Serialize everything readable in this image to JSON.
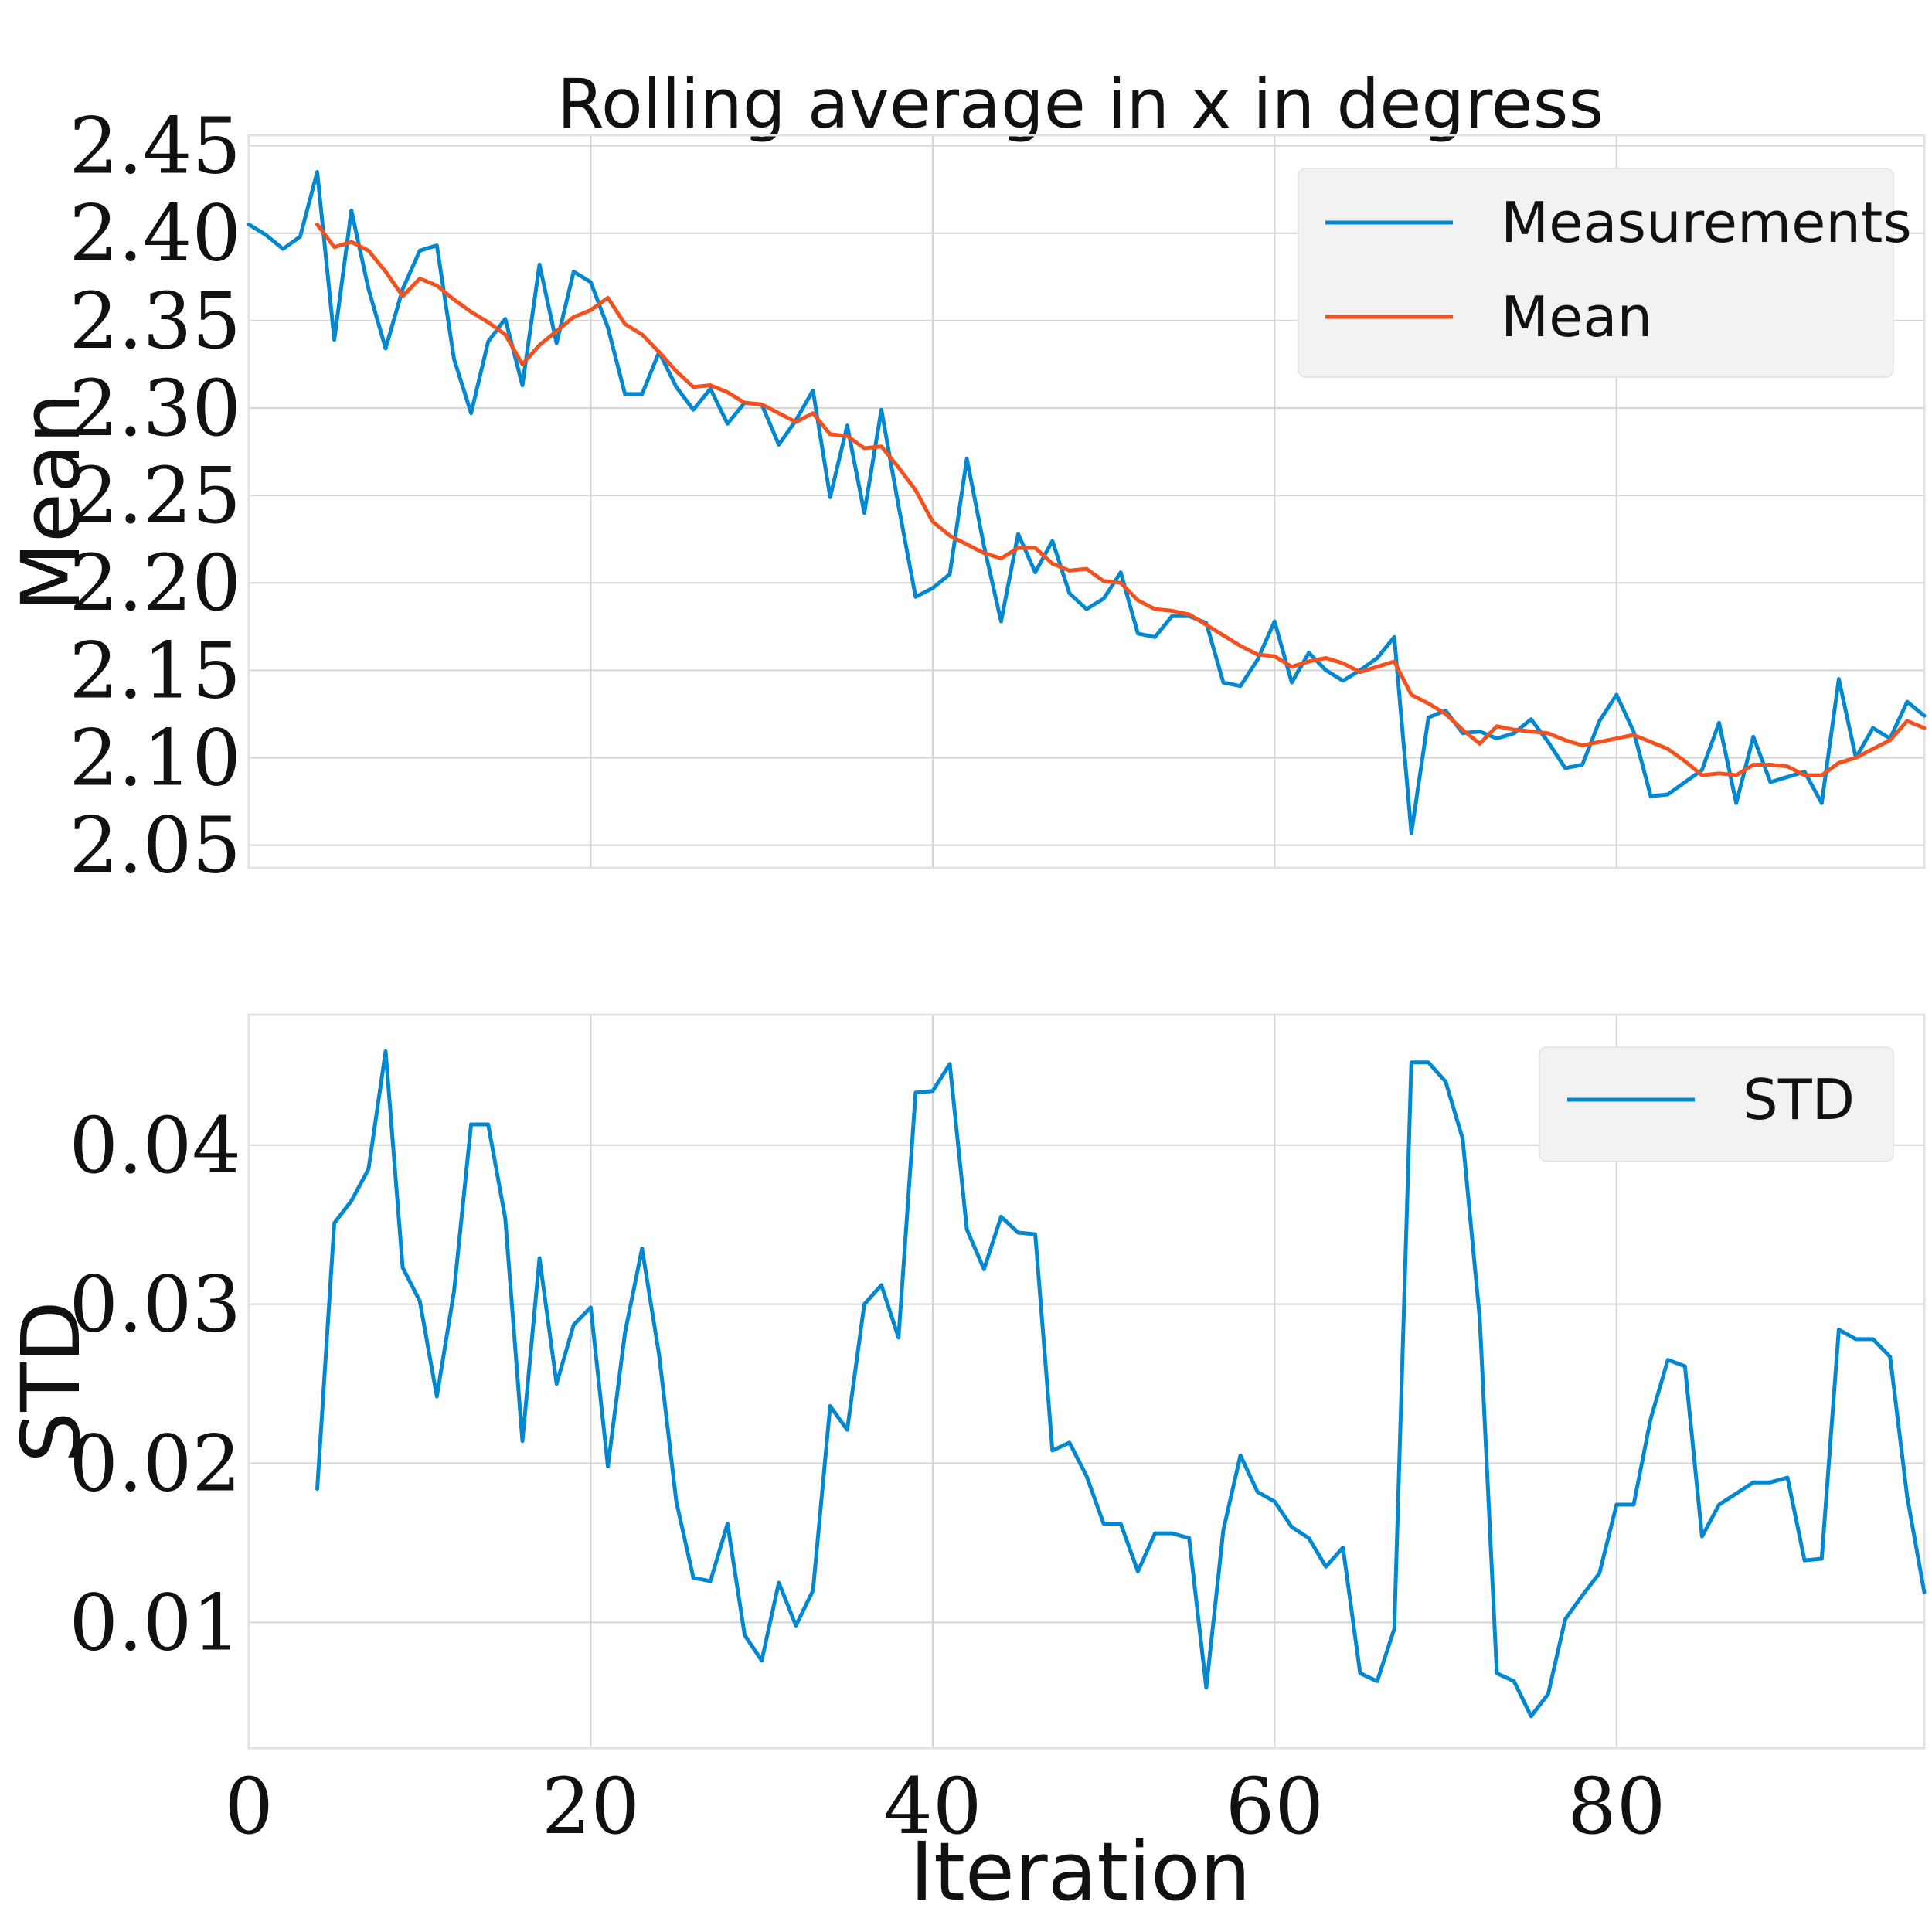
{
  "chart_data": [
    {
      "type": "line",
      "title": "Rolling average in x in degress",
      "ylabel": "Mean",
      "xlabel": "",
      "xlim": [
        0,
        98
      ],
      "ylim": [
        2.037,
        2.456
      ],
      "yticks": [
        2.05,
        2.1,
        2.15,
        2.2,
        2.25,
        2.3,
        2.35,
        2.4,
        2.45
      ],
      "ytick_labels": [
        "2.05",
        "2.10",
        "2.15",
        "2.20",
        "2.25",
        "2.30",
        "2.35",
        "2.40",
        "2.45"
      ],
      "xticks": [
        0,
        20,
        40,
        60,
        80
      ],
      "xtick_labels": [],
      "grid": true,
      "legend_position": "top-right",
      "series": [
        {
          "name": "Measurements",
          "color": "#0288d1",
          "x_start": 0,
          "values": [
            2.405,
            2.399,
            2.391,
            2.398,
            2.435,
            2.339,
            2.413,
            2.368,
            2.334,
            2.368,
            2.39,
            2.393,
            2.328,
            2.297,
            2.338,
            2.351,
            2.313,
            2.382,
            2.337,
            2.378,
            2.372,
            2.346,
            2.308,
            2.308,
            2.332,
            2.312,
            2.299,
            2.311,
            2.291,
            2.303,
            2.302,
            2.279,
            2.293,
            2.31,
            2.249,
            2.29,
            2.24,
            2.299,
            2.244,
            2.192,
            2.197,
            2.205,
            2.271,
            2.221,
            2.178,
            2.228,
            2.206,
            2.224,
            2.194,
            2.185,
            2.191,
            2.206,
            2.171,
            2.169,
            2.181,
            2.181,
            2.177,
            2.143,
            2.141,
            2.156,
            2.178,
            2.143,
            2.16,
            2.15,
            2.144,
            2.15,
            2.157,
            2.169,
            2.057,
            2.123,
            2.127,
            2.114,
            2.115,
            2.111,
            2.114,
            2.122,
            2.109,
            2.094,
            2.096,
            2.121,
            2.136,
            2.115,
            2.078,
            2.079,
            2.086,
            2.093,
            2.12,
            2.074,
            2.112,
            2.086,
            2.089,
            2.092,
            2.074,
            2.145,
            2.1,
            2.117,
            2.111,
            2.132,
            2.124
          ]
        },
        {
          "name": "Mean",
          "color": "#f4511e",
          "x_start": 4,
          "values": [
            2.405,
            2.392,
            2.395,
            2.39,
            2.378,
            2.364,
            2.374,
            2.37,
            2.362,
            2.355,
            2.349,
            2.342,
            2.325,
            2.336,
            2.344,
            2.352,
            2.356,
            2.363,
            2.348,
            2.342,
            2.332,
            2.321,
            2.312,
            2.313,
            2.309,
            2.303,
            2.302,
            2.297,
            2.292,
            2.297,
            2.285,
            2.284,
            2.277,
            2.278,
            2.266,
            2.253,
            2.235,
            2.227,
            2.222,
            2.217,
            2.214,
            2.22,
            2.22,
            2.211,
            2.207,
            2.208,
            2.201,
            2.2,
            2.19,
            2.185,
            2.184,
            2.182,
            2.176,
            2.17,
            2.164,
            2.159,
            2.158,
            2.152,
            2.155,
            2.157,
            2.154,
            2.149,
            2.152,
            2.155,
            2.136,
            2.131,
            2.125,
            2.116,
            2.108,
            2.118,
            2.116,
            2.115,
            2.114,
            2.11,
            2.107,
            2.109,
            2.111,
            2.113,
            2.109,
            2.105,
            2.098,
            2.09,
            2.091,
            2.09,
            2.096,
            2.096,
            2.095,
            2.09,
            2.09,
            2.097,
            2.1,
            2.105,
            2.11,
            2.121,
            2.117
          ]
        }
      ]
    },
    {
      "type": "line",
      "title": "",
      "ylabel": "STD",
      "xlabel": "Iteration",
      "xlim": [
        0,
        98
      ],
      "ylim": [
        0.0021,
        0.0482
      ],
      "yticks": [
        0.01,
        0.02,
        0.03,
        0.04
      ],
      "ytick_labels": [
        "0.01",
        "0.02",
        "0.03",
        "0.04"
      ],
      "xticks": [
        0,
        20,
        40,
        60,
        80
      ],
      "xtick_labels": [
        "0",
        "20",
        "40",
        "60",
        "80"
      ],
      "grid": true,
      "legend_position": "top-right",
      "series": [
        {
          "name": "STD",
          "color": "#0288d1",
          "x_start": 4,
          "values": [
            0.0184,
            0.0351,
            0.0365,
            0.0385,
            0.0459,
            0.0323,
            0.0302,
            0.0242,
            0.0308,
            0.0413,
            0.0413,
            0.0354,
            0.0214,
            0.0329,
            0.025,
            0.0287,
            0.0298,
            0.0198,
            0.0282,
            0.0335,
            0.0268,
            0.0176,
            0.0128,
            0.0126,
            0.0162,
            0.0092,
            0.0076,
            0.0125,
            0.0098,
            0.012,
            0.0236,
            0.0221,
            0.03,
            0.0312,
            0.0279,
            0.0433,
            0.0434,
            0.0451,
            0.0347,
            0.0322,
            0.0355,
            0.0345,
            0.0344,
            0.0208,
            0.0213,
            0.0192,
            0.0162,
            0.0162,
            0.0132,
            0.0156,
            0.0156,
            0.0153,
            0.0059,
            0.0158,
            0.0205,
            0.0182,
            0.0176,
            0.016,
            0.0153,
            0.0135,
            0.0147,
            0.0068,
            0.0063,
            0.0096,
            0.0452,
            0.0452,
            0.044,
            0.0404,
            0.0291,
            0.0068,
            0.0063,
            0.0041,
            0.0055,
            0.0102,
            0.0117,
            0.0131,
            0.0174,
            0.0174,
            0.0228,
            0.0265,
            0.0261,
            0.0154,
            0.0174,
            0.0181,
            0.0188,
            0.0188,
            0.0191,
            0.0139,
            0.014,
            0.0284,
            0.0278,
            0.0278,
            0.0267,
            0.0179,
            0.0119
          ]
        }
      ]
    }
  ]
}
